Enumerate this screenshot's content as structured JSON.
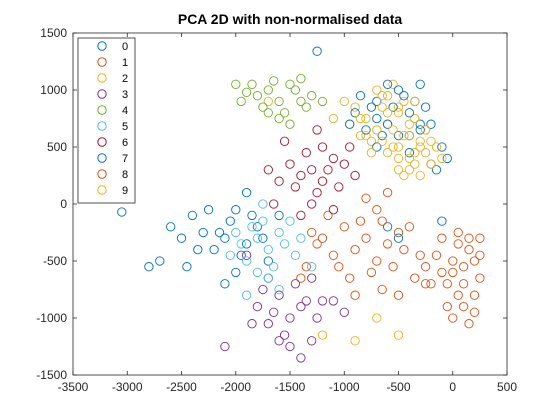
{
  "chart_data": {
    "type": "scatter",
    "title": "PCA 2D with non-normalised data",
    "xlabel": "",
    "ylabel": "",
    "xlim": [
      -3500,
      500
    ],
    "ylim": [
      -1500,
      1500
    ],
    "xticks": [
      -3500,
      -3000,
      -2500,
      -2000,
      -1500,
      -1000,
      -500,
      0,
      500
    ],
    "yticks": [
      -1500,
      -1000,
      -500,
      0,
      500,
      1000,
      1500
    ],
    "grid": false,
    "legend_position": "top-left",
    "marker": "open-circle",
    "series": [
      {
        "name": "0",
        "color": "#0072BD",
        "points": [
          [
            -2300,
            -250
          ],
          [
            -2100,
            -300
          ],
          [
            -1900,
            -350
          ],
          [
            -2400,
            -100
          ],
          [
            -2700,
            -500
          ],
          [
            -2000,
            -50
          ],
          [
            -2200,
            -400
          ],
          [
            -1800,
            -200
          ],
          [
            -2500,
            -300
          ],
          [
            -2050,
            -150
          ],
          [
            -1950,
            -450
          ],
          [
            -2600,
            -200
          ],
          [
            -1700,
            -500
          ],
          [
            -2150,
            -250
          ],
          [
            -1850,
            -100
          ],
          [
            -2350,
            -400
          ],
          [
            -1750,
            -300
          ],
          [
            -2250,
            -50
          ],
          [
            -2450,
            -550
          ],
          [
            -2000,
            -600
          ],
          [
            -3050,
            -70
          ],
          [
            -2800,
            -550
          ],
          [
            -1600,
            -100
          ],
          [
            -1900,
            100
          ],
          [
            -2100,
            -700
          ],
          [
            -300,
            700
          ],
          [
            -200,
            350
          ],
          [
            -700,
            900
          ],
          [
            -500,
            -300
          ],
          [
            -400,
            600
          ],
          [
            -1250,
            1340
          ],
          [
            -600,
            -200
          ],
          [
            -100,
            -150
          ]
        ]
      },
      {
        "name": "1",
        "color": "#D95319",
        "points": [
          [
            -1000,
            -200
          ],
          [
            -900,
            -400
          ],
          [
            -800,
            -300
          ],
          [
            -700,
            -500
          ],
          [
            -600,
            -350
          ],
          [
            -500,
            -250
          ],
          [
            -1100,
            -450
          ],
          [
            -1200,
            -300
          ],
          [
            -850,
            -150
          ],
          [
            -750,
            -600
          ],
          [
            -650,
            -150
          ],
          [
            -550,
            -550
          ],
          [
            -450,
            -400
          ],
          [
            -950,
            -650
          ],
          [
            -1050,
            -550
          ],
          [
            -1150,
            -100
          ],
          [
            -1250,
            -350
          ],
          [
            -800,
            50
          ],
          [
            -700,
            -50
          ],
          [
            -600,
            100
          ],
          [
            -400,
            -200
          ],
          [
            -300,
            -450
          ],
          [
            -350,
            -650
          ],
          [
            -1300,
            -250
          ],
          [
            -1350,
            -550
          ],
          [
            -900,
            -800
          ],
          [
            -250,
            -700
          ],
          [
            -500,
            -800
          ],
          [
            -1400,
            -650
          ],
          [
            -650,
            -750
          ]
        ]
      },
      {
        "name": "2",
        "color": "#EDB120",
        "points": [
          [
            -600,
            700
          ],
          [
            -500,
            800
          ],
          [
            -400,
            600
          ],
          [
            -700,
            650
          ],
          [
            -550,
            500
          ],
          [
            -450,
            900
          ],
          [
            -350,
            750
          ],
          [
            -650,
            850
          ],
          [
            -750,
            550
          ],
          [
            -500,
            400
          ],
          [
            -300,
            500
          ],
          [
            -400,
            300
          ],
          [
            -800,
            750
          ],
          [
            -850,
            600
          ],
          [
            -600,
            950
          ],
          [
            -700,
            1000
          ],
          [
            -250,
            650
          ],
          [
            -900,
            850
          ],
          [
            -350,
            450
          ],
          [
            -950,
            700
          ],
          [
            -550,
            1050
          ],
          [
            -1000,
            900
          ],
          [
            -1100,
            750
          ],
          [
            -200,
            550
          ],
          [
            -450,
            250
          ],
          [
            -500,
            -1150
          ],
          [
            -900,
            -1200
          ],
          [
            -1200,
            -1150
          ],
          [
            -700,
            -1000
          ],
          [
            -1700,
            900
          ]
        ]
      },
      {
        "name": "3",
        "color": "#7E2F8E",
        "points": [
          [
            -1600,
            -800
          ],
          [
            -1500,
            -1000
          ],
          [
            -1400,
            -900
          ],
          [
            -1700,
            -1050
          ],
          [
            -1300,
            -1200
          ],
          [
            -1450,
            -700
          ],
          [
            -1550,
            -1150
          ],
          [
            -1350,
            -850
          ],
          [
            -1650,
            -950
          ],
          [
            -1250,
            -1000
          ],
          [
            -1750,
            -750
          ],
          [
            -1500,
            -1250
          ],
          [
            -1400,
            -1350
          ],
          [
            -1600,
            -1200
          ],
          [
            -1800,
            -900
          ],
          [
            -1200,
            -850
          ],
          [
            -1700,
            -650
          ],
          [
            -1850,
            -1050
          ],
          [
            -1300,
            -650
          ],
          [
            -2100,
            -1250
          ],
          [
            -1000,
            -950
          ],
          [
            -1100,
            -850
          ],
          [
            -1900,
            -450
          ]
        ]
      },
      {
        "name": "4",
        "color": "#77AC30",
        "points": [
          [
            -1700,
            1000
          ],
          [
            -1600,
            900
          ],
          [
            -1500,
            1050
          ],
          [
            -1800,
            950
          ],
          [
            -1400,
            900
          ],
          [
            -1550,
            800
          ],
          [
            -1650,
            1080
          ],
          [
            -1750,
            850
          ],
          [
            -1450,
            1000
          ],
          [
            -1350,
            850
          ],
          [
            -1850,
            1050
          ],
          [
            -1900,
            980
          ],
          [
            -1300,
            950
          ],
          [
            -1600,
            750
          ],
          [
            -1500,
            700
          ],
          [
            -1700,
            800
          ],
          [
            -1400,
            1100
          ],
          [
            -2000,
            1050
          ],
          [
            -1200,
            900
          ],
          [
            -1950,
            900
          ]
        ]
      },
      {
        "name": "5",
        "color": "#4DBEEE",
        "points": [
          [
            -1800,
            -300
          ],
          [
            -1700,
            -400
          ],
          [
            -1600,
            -250
          ],
          [
            -1900,
            -500
          ],
          [
            -1750,
            -150
          ],
          [
            -1650,
            -550
          ],
          [
            -1550,
            -350
          ],
          [
            -1850,
            -200
          ],
          [
            -1950,
            -350
          ],
          [
            -1450,
            -450
          ],
          [
            -1500,
            -150
          ],
          [
            -1700,
            -650
          ],
          [
            -2000,
            -250
          ],
          [
            -1600,
            -750
          ],
          [
            -1800,
            -600
          ],
          [
            -1400,
            -300
          ],
          [
            -1900,
            -800
          ],
          [
            -2050,
            -450
          ],
          [
            -1300,
            -550
          ],
          [
            -1750,
            0
          ]
        ]
      },
      {
        "name": "6",
        "color": "#A2142F",
        "points": [
          [
            -1300,
            300
          ],
          [
            -1200,
            200
          ],
          [
            -1100,
            400
          ],
          [
            -1400,
            250
          ],
          [
            -1250,
            100
          ],
          [
            -1150,
            300
          ],
          [
            -1350,
            450
          ],
          [
            -1050,
            150
          ],
          [
            -1450,
            150
          ],
          [
            -1000,
            350
          ],
          [
            -1500,
            350
          ],
          [
            -1200,
            500
          ],
          [
            -1300,
            0
          ],
          [
            -1100,
            -50
          ],
          [
            -1400,
            -100
          ],
          [
            -1600,
            200
          ],
          [
            -900,
            250
          ],
          [
            -1550,
            550
          ],
          [
            -1250,
            650
          ],
          [
            -1700,
            300
          ],
          [
            -950,
            500
          ],
          [
            -1650,
            0
          ]
        ]
      },
      {
        "name": "7",
        "color": "#0072BD",
        "points": [
          [
            -600,
            700
          ],
          [
            -500,
            600
          ],
          [
            -400,
            800
          ],
          [
            -700,
            750
          ],
          [
            -300,
            650
          ],
          [
            -550,
            850
          ],
          [
            -450,
            950
          ],
          [
            -650,
            600
          ],
          [
            -350,
            900
          ],
          [
            -750,
            850
          ],
          [
            -200,
            700
          ],
          [
            -800,
            650
          ],
          [
            -500,
            1000
          ],
          [
            -250,
            850
          ],
          [
            -400,
            450
          ],
          [
            -100,
            500
          ],
          [
            -900,
            800
          ],
          [
            -600,
            1050
          ],
          [
            -850,
            950
          ],
          [
            -300,
            1050
          ],
          [
            -150,
            300
          ],
          [
            -50,
            400
          ],
          [
            -950,
            700
          ],
          [
            -700,
            500
          ]
        ]
      },
      {
        "name": "8",
        "color": "#D95319",
        "points": [
          [
            0,
            -600
          ],
          [
            100,
            -700
          ],
          [
            200,
            -500
          ],
          [
            50,
            -800
          ],
          [
            150,
            -400
          ],
          [
            250,
            -650
          ],
          [
            -50,
            -700
          ],
          [
            100,
            -900
          ],
          [
            200,
            -800
          ],
          [
            0,
            -500
          ],
          [
            -100,
            -600
          ],
          [
            150,
            -300
          ],
          [
            250,
            -450
          ],
          [
            50,
            -350
          ],
          [
            -150,
            -450
          ],
          [
            100,
            -550
          ],
          [
            200,
            -950
          ],
          [
            -50,
            -900
          ],
          [
            0,
            -1000
          ],
          [
            150,
            -1050
          ],
          [
            -200,
            -700
          ],
          [
            50,
            -250
          ],
          [
            250,
            -300
          ],
          [
            -100,
            -300
          ],
          [
            -250,
            -550
          ]
        ]
      },
      {
        "name": "9",
        "color": "#EDB120",
        "points": [
          [
            -500,
            500
          ],
          [
            -400,
            400
          ],
          [
            -300,
            550
          ],
          [
            -600,
            450
          ],
          [
            -350,
            350
          ],
          [
            -450,
            600
          ],
          [
            -550,
            650
          ],
          [
            -250,
            450
          ],
          [
            -650,
            550
          ],
          [
            -200,
            350
          ],
          [
            -700,
            650
          ],
          [
            -300,
            250
          ],
          [
            -500,
            300
          ],
          [
            -400,
            700
          ],
          [
            -150,
            500
          ],
          [
            -750,
            450
          ],
          [
            -600,
            800
          ],
          [
            -800,
            600
          ],
          [
            -100,
            400
          ],
          [
            -500,
            850
          ],
          [
            -350,
            900
          ],
          [
            -850,
            750
          ],
          [
            -250,
            650
          ],
          [
            -650,
            950
          ]
        ]
      }
    ]
  }
}
